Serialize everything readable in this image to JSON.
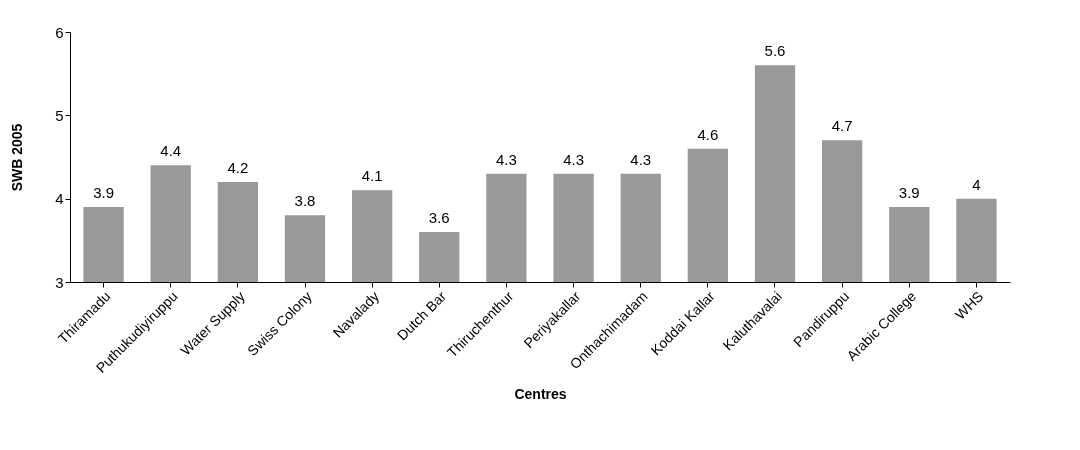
{
  "chart_data": {
    "type": "bar",
    "xlabel": "Centres",
    "ylabel": "SWB 2005",
    "categories": [
      "Thiramadu",
      "Puthukudiyiruppu",
      "Water Supply",
      "Swiss Colony",
      "Navalady",
      "Dutch Bar",
      "Thiruchenthur",
      "Periyakallar",
      "Onthachimadam",
      "Koddai Kallar",
      "Kaluthavalai",
      "Pandiruppu",
      "Arabic College",
      "WHS"
    ],
    "values": [
      3.9,
      4.4,
      4.2,
      3.8,
      4.1,
      3.6,
      4.3,
      4.3,
      4.3,
      4.6,
      5.6,
      4.7,
      3.9,
      4
    ],
    "color": "#999999",
    "ylim": [
      3,
      6
    ],
    "yticks": [
      3,
      4,
      5,
      6
    ],
    "data_labels": true,
    "grid": false
  }
}
